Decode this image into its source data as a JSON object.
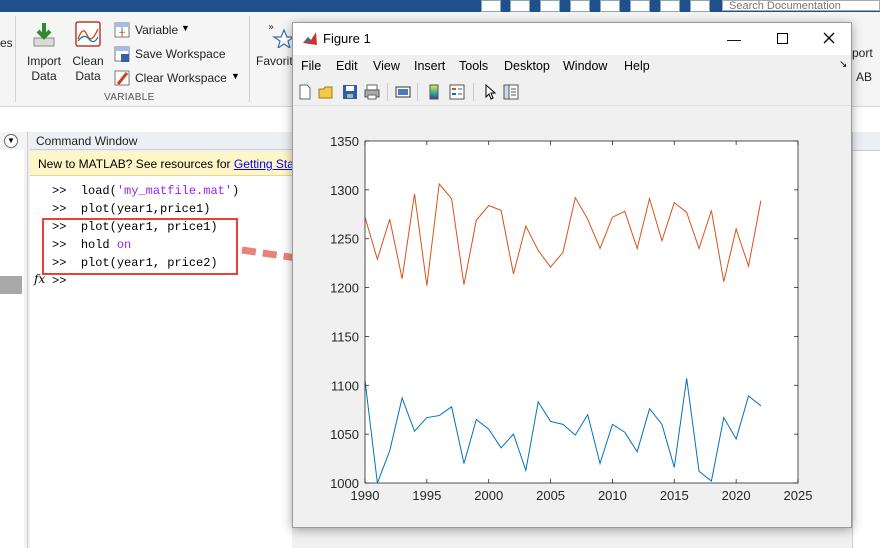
{
  "toolstrip": {
    "search_placeholder": "Search Documentation",
    "cut_label_left": "es",
    "import_label": "Import\nData",
    "import_l1": "Import",
    "import_l2": "Data",
    "clean_l1": "Clean",
    "clean_l2": "Data",
    "variable_label": "Variable",
    "save_workspace_label": "Save Workspace",
    "clear_workspace_label": "Clear Workspace",
    "section_variable": "VARIABLE",
    "favorites_label": "Favorit",
    "right_cut_1": "port",
    "right_cut_2": "AB"
  },
  "command_window": {
    "title": "Command Window",
    "banner_text": "New to MATLAB? See resources for ",
    "banner_link": "Getting Start",
    "lines": [
      {
        "prompt": ">>",
        "code": "load(",
        "str": "'my_matfile.mat'",
        "tail": ")"
      },
      {
        "prompt": ">>",
        "code": "plot(year1,price1)"
      },
      {
        "prompt": ">>",
        "code": "plot(year1, price1)"
      },
      {
        "prompt": ">>",
        "code": "hold ",
        "kw": "on"
      },
      {
        "prompt": ">>",
        "code": "plot(year1, price2)"
      },
      {
        "prompt": ">>",
        "code": ""
      }
    ],
    "fx_label": "fx"
  },
  "figure": {
    "title": "Figure 1",
    "menus": [
      "File",
      "Edit",
      "View",
      "Insert",
      "Tools",
      "Desktop",
      "Window",
      "Help"
    ],
    "toolbar_icons": [
      "new-figure-icon",
      "open-file-icon",
      "save-icon",
      "print-icon",
      "link-plot-icon",
      "colorbar-icon",
      "legend-icon",
      "edit-plot-icon",
      "property-inspector-icon"
    ]
  },
  "colors": {
    "series_orange": "#d95319",
    "series_blue": "#0072bd",
    "annotation_red": "#e8413a"
  },
  "chart_data": {
    "type": "line",
    "title": "",
    "xlabel": "",
    "ylabel": "",
    "xlim": [
      1990,
      2025
    ],
    "ylim": [
      1000,
      1350
    ],
    "xticks": [
      1990,
      1995,
      2000,
      2005,
      2010,
      2015,
      2020,
      2025
    ],
    "yticks": [
      1000,
      1050,
      1100,
      1150,
      1200,
      1250,
      1300,
      1350
    ],
    "grid": false,
    "x": [
      1990,
      1991,
      1992,
      1993,
      1994,
      1995,
      1996,
      1997,
      1998,
      1999,
      2000,
      2001,
      2002,
      2003,
      2004,
      2005,
      2006,
      2007,
      2008,
      2009,
      2010,
      2011,
      2012,
      2013,
      2014,
      2015,
      2016,
      2017,
      2018,
      2019,
      2020,
      2021,
      2022
    ],
    "series": [
      {
        "values": [
          1272,
          1229,
          1270,
          1209,
          1296,
          1202,
          1306,
          1291,
          1203,
          1269,
          1284,
          1279,
          1214,
          1263,
          1238,
          1221,
          1236,
          1292,
          1270,
          1240,
          1272,
          1278,
          1240,
          1291,
          1248,
          1287,
          1277,
          1240,
          1279,
          1206,
          1260,
          1222,
          1289
        ]
      },
      {
        "values": [
          1105,
          1000,
          1033,
          1087,
          1053,
          1067,
          1069,
          1078,
          1020,
          1065,
          1055,
          1036,
          1050,
          1013,
          1083,
          1063,
          1060,
          1049,
          1070,
          1020,
          1060,
          1052,
          1032,
          1076,
          1060,
          1016,
          1107,
          1012,
          1002,
          1067,
          1045,
          1089,
          1079
        ]
      }
    ]
  }
}
